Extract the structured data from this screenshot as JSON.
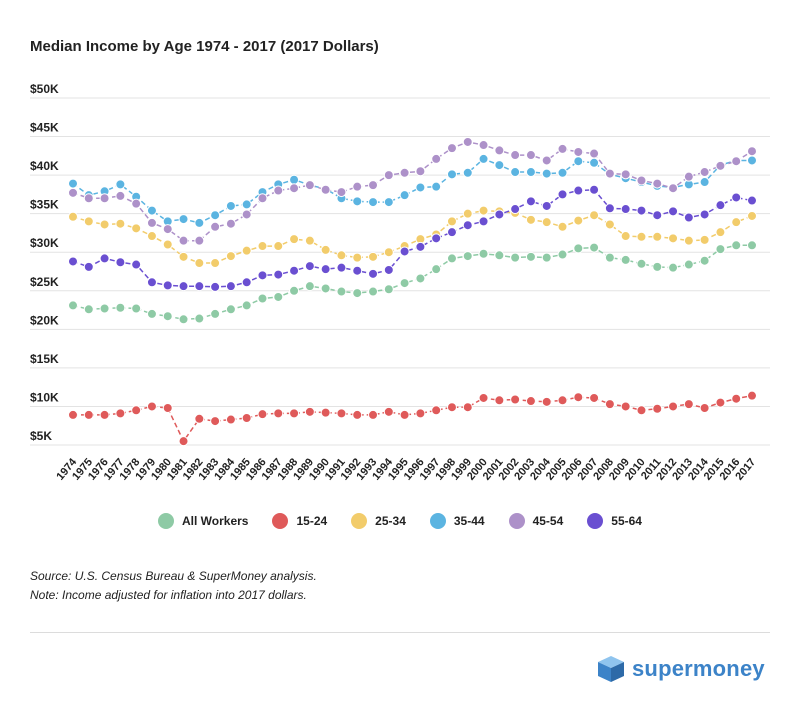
{
  "chart_data": {
    "type": "line",
    "title": "Median Income by Age 1974 - 2017 (2017 Dollars)",
    "xlabel": "",
    "ylabel": "",
    "ylim": [
      5000,
      50000
    ],
    "yticks": [
      5000,
      10000,
      15000,
      20000,
      25000,
      30000,
      35000,
      40000,
      45000,
      50000
    ],
    "ytick_labels": [
      "$5K",
      "$10K",
      "$15K",
      "$20K",
      "$25K",
      "$30K",
      "$35K",
      "$40K",
      "$45K",
      "$50K"
    ],
    "x": [
      1974,
      1975,
      1976,
      1977,
      1978,
      1979,
      1980,
      1981,
      1982,
      1983,
      1984,
      1985,
      1986,
      1987,
      1988,
      1989,
      1990,
      1991,
      1992,
      1993,
      1994,
      1995,
      1996,
      1997,
      1998,
      1999,
      2000,
      2001,
      2002,
      2003,
      2004,
      2005,
      2006,
      2007,
      2008,
      2009,
      2010,
      2011,
      2012,
      2013,
      2014,
      2015,
      2016,
      2017
    ],
    "grid": true,
    "legend_position": "bottom",
    "series": [
      {
        "name": "All Workers",
        "color": "#8ecaa5",
        "values": [
          23100,
          22600,
          22700,
          22800,
          22700,
          22000,
          21700,
          21300,
          21400,
          22000,
          22600,
          23100,
          24000,
          24200,
          25000,
          25600,
          25300,
          24900,
          24700,
          24900,
          25200,
          26000,
          26600,
          27800,
          29200,
          29500,
          29800,
          29600,
          29300,
          29400,
          29300,
          29700,
          30500,
          30600,
          29300,
          29000,
          28500,
          28100,
          28000,
          28400,
          28900,
          30400,
          30900,
          30900
        ]
      },
      {
        "name": "15-24",
        "color": "#df5a5a",
        "values": [
          8900,
          8900,
          8900,
          9100,
          9500,
          10000,
          9800,
          5500,
          8400,
          8100,
          8300,
          8500,
          9000,
          9100,
          9100,
          9300,
          9200,
          9100,
          8900,
          8900,
          9300,
          8900,
          9100,
          9500,
          9900,
          9900,
          11100,
          10800,
          10900,
          10700,
          10600,
          10800,
          11200,
          11100,
          10300,
          10000,
          9500,
          9700,
          10000,
          10300,
          9800,
          10500,
          11000,
          11400
        ]
      },
      {
        "name": "25-34",
        "color": "#f2cc6b",
        "values": [
          34600,
          34000,
          33600,
          33700,
          33100,
          32100,
          31000,
          29400,
          28600,
          28600,
          29500,
          30200,
          30800,
          30800,
          31700,
          31500,
          30300,
          29600,
          29300,
          29400,
          30000,
          30800,
          31700,
          32300,
          34000,
          35000,
          35400,
          35300,
          35100,
          34200,
          33900,
          33300,
          34100,
          34800,
          33600,
          32100,
          32000,
          32000,
          31800,
          31500,
          31600,
          32600,
          33900,
          34700
        ]
      },
      {
        "name": "35-44",
        "color": "#5bb4e1",
        "values": [
          38900,
          37400,
          37900,
          38800,
          37200,
          35400,
          34000,
          34300,
          33800,
          34800,
          36000,
          36200,
          37800,
          38800,
          39400,
          38700,
          38200,
          37000,
          36600,
          36500,
          36500,
          37400,
          38400,
          38500,
          40100,
          40300,
          42100,
          41300,
          40400,
          40400,
          40200,
          40300,
          41800,
          41600,
          40100,
          39600,
          39100,
          38600,
          38400,
          38800,
          39100,
          41300,
          41900,
          41900
        ]
      },
      {
        "name": "45-54",
        "color": "#ad91c9",
        "values": [
          37700,
          37000,
          37000,
          37300,
          36300,
          33800,
          33000,
          31500,
          31500,
          33300,
          33700,
          34900,
          37000,
          38000,
          38300,
          38700,
          38100,
          37800,
          38500,
          38700,
          40000,
          40300,
          40500,
          42100,
          43500,
          44300,
          43900,
          43200,
          42600,
          42600,
          41900,
          43400,
          43000,
          42800,
          40200,
          40100,
          39300,
          38900,
          38300,
          39800,
          40400,
          41200,
          41800,
          43100
        ]
      },
      {
        "name": "55-64",
        "color": "#6a4fd1",
        "values": [
          28800,
          28100,
          29200,
          28700,
          28400,
          26100,
          25700,
          25600,
          25600,
          25500,
          25600,
          26100,
          27000,
          27100,
          27600,
          28200,
          27800,
          28000,
          27600,
          27200,
          27700,
          30100,
          30700,
          31800,
          32600,
          33500,
          34000,
          34900,
          35600,
          36600,
          36000,
          37500,
          38000,
          38100,
          35700,
          35600,
          35400,
          34800,
          35300,
          34500,
          34900,
          36100,
          37100,
          36700
        ]
      }
    ]
  },
  "notes": {
    "source": "Source: U.S. Census Bureau & SuperMoney analysis.",
    "note": "Note: Income adjusted for inflation into 2017 dollars."
  },
  "logo": {
    "text": "supermoney",
    "color": "#3c83c8"
  }
}
